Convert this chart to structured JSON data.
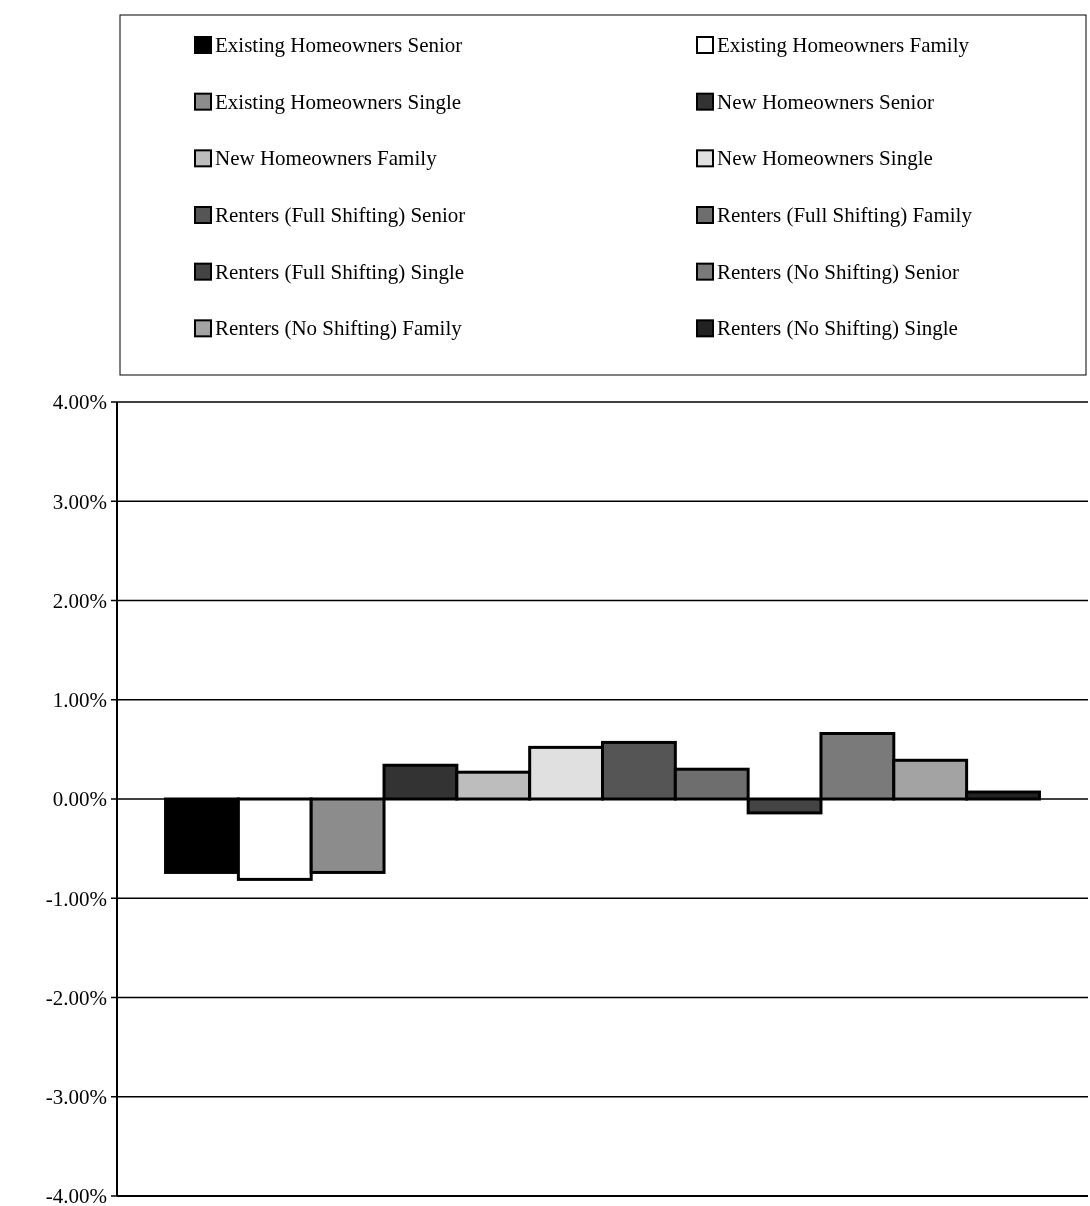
{
  "chart_data": {
    "type": "bar",
    "categories": [
      null
    ],
    "series": [
      {
        "name": "Existing Homeowners Senior",
        "color": "#000000",
        "values": [
          -0.74
        ]
      },
      {
        "name": "Existing Homeowners Family",
        "color": "#ffffff",
        "values": [
          -0.81
        ]
      },
      {
        "name": "Existing Homeowners Single",
        "color": "#8c8c8c",
        "values": [
          -0.74
        ]
      },
      {
        "name": "New Homeowners Senior",
        "color": "#333333",
        "values": [
          0.34
        ]
      },
      {
        "name": "New Homeowners Family",
        "color": "#bdbdbd",
        "values": [
          0.27
        ]
      },
      {
        "name": "New Homeowners Single",
        "color": "#e0e0e0",
        "values": [
          0.52
        ]
      },
      {
        "name": "Renters (Full Shifting) Senior",
        "color": "#555555",
        "values": [
          0.57
        ]
      },
      {
        "name": "Renters (Full Shifting) Family",
        "color": "#6e6e6e",
        "values": [
          0.3
        ]
      },
      {
        "name": "Renters (Full Shifting) Single",
        "color": "#444444",
        "values": [
          -0.14
        ]
      },
      {
        "name": "Renters (No Shifting) Senior",
        "color": "#7a7a7a",
        "values": [
          0.66
        ]
      },
      {
        "name": "Renters (No Shifting) Family",
        "color": "#a3a3a3",
        "values": [
          0.39
        ]
      },
      {
        "name": "Renters (No Shifting) Single",
        "color": "#222222",
        "values": [
          0.07
        ]
      }
    ],
    "ylim": [
      -4,
      4
    ],
    "yticks": [
      {
        "value": 4,
        "label": "4.00%"
      },
      {
        "value": 3,
        "label": "3.00%"
      },
      {
        "value": 2,
        "label": "2.00%"
      },
      {
        "value": 1,
        "label": "1.00%"
      },
      {
        "value": 0,
        "label": "0.00%"
      },
      {
        "value": -1,
        "label": "-1.00%"
      },
      {
        "value": -2,
        "label": "-2.00%"
      },
      {
        "value": -3,
        "label": "-3.00%"
      },
      {
        "value": -4,
        "label": "-4.00%"
      }
    ],
    "grid": "y",
    "legend": "top"
  }
}
